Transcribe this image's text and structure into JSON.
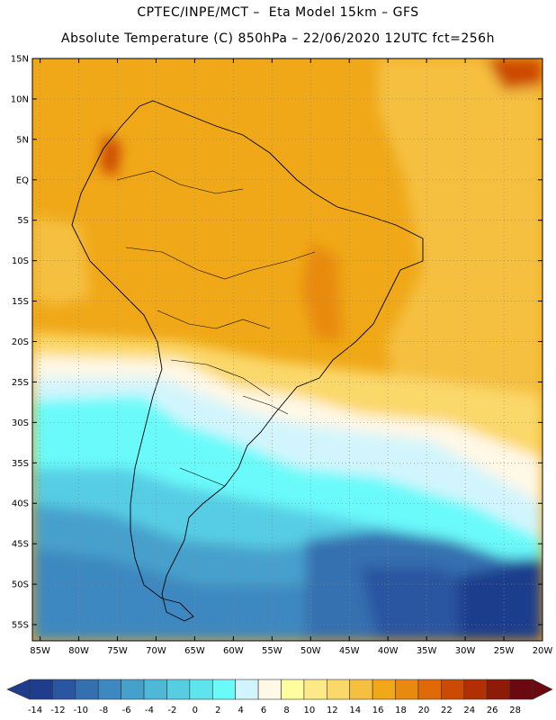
{
  "header": {
    "line1": "CPTEC/INPE/MCT –  Eta Model 15km – GFS",
    "line2": "Absolute Temperature (C) 850hPa – 22/06/2020 12UTC fct=256h"
  },
  "axes": {
    "lat_labels": [
      "15N",
      "10N",
      "5N",
      "EQ",
      "5S",
      "10S",
      "15S",
      "20S",
      "25S",
      "30S",
      "35S",
      "40S",
      "45S",
      "50S",
      "55S"
    ],
    "lon_labels": [
      "85W",
      "80W",
      "75W",
      "70W",
      "65W",
      "60W",
      "55W",
      "50W",
      "45W",
      "40W",
      "35W",
      "30W",
      "25W",
      "20W"
    ],
    "lat_range": [
      15,
      -57
    ],
    "lon_range": [
      -86,
      -20
    ]
  },
  "colorbar": {
    "labels": [
      "-14",
      "-12",
      "-10",
      "-8",
      "-6",
      "-4",
      "-2",
      "0",
      "2",
      "4",
      "6",
      "8",
      "10",
      "12",
      "14",
      "16",
      "18",
      "20",
      "22",
      "24",
      "26",
      "28"
    ],
    "colors": [
      "#1f3d8c",
      "#2a55a0",
      "#3470b0",
      "#3d88c0",
      "#46a0cc",
      "#4fb8d8",
      "#57cde4",
      "#5fe4ee",
      "#6afafa",
      "#d2f5fd",
      "#fff8e6",
      "#fefea0",
      "#fde98a",
      "#fbd86a",
      "#f5c040",
      "#f0a818",
      "#e88a10",
      "#e06a08",
      "#cc4a04",
      "#b03004",
      "#8c1c08",
      "#6a0a10"
    ]
  },
  "chart_data": {
    "type": "heatmap",
    "title": "Absolute Temperature (C) 850hPa",
    "units": "C",
    "value_range": [
      -14,
      28
    ]
  }
}
